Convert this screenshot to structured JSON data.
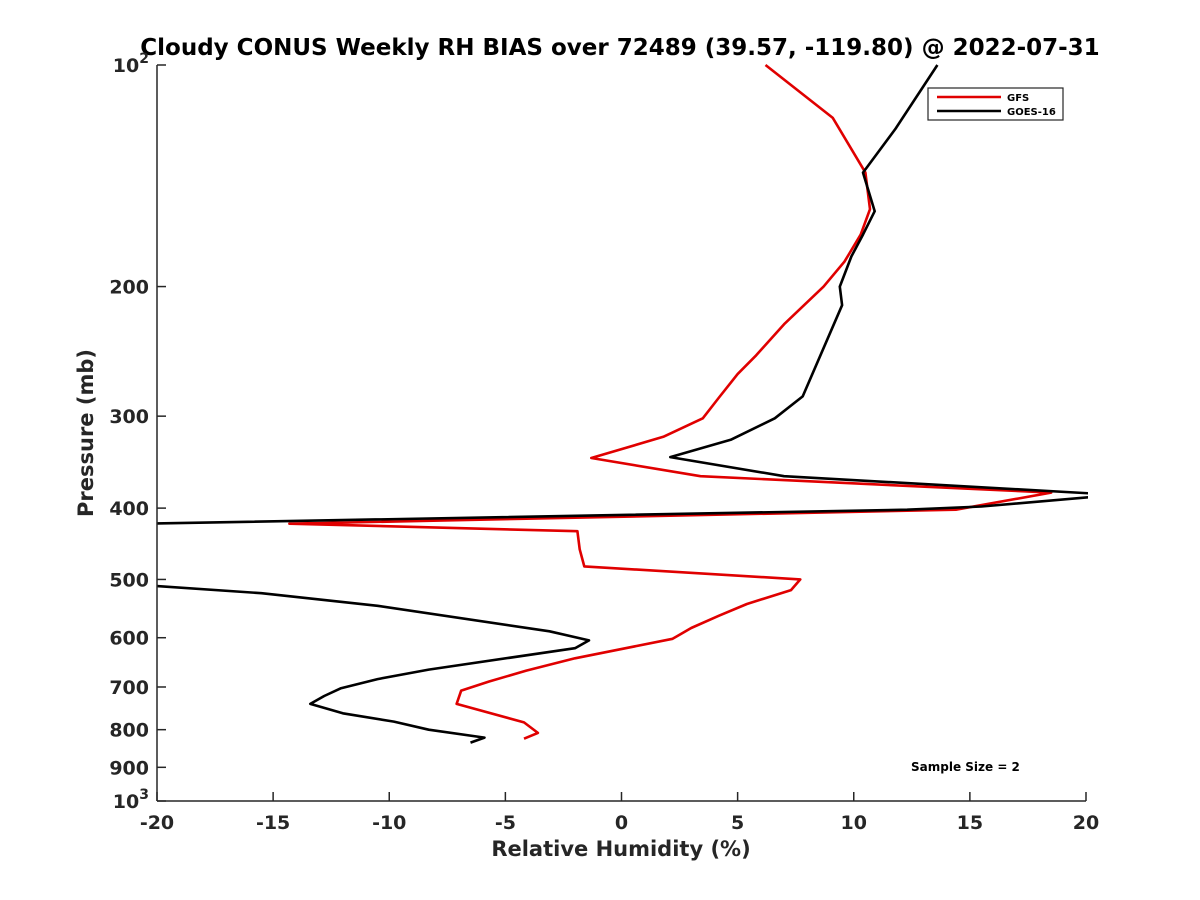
{
  "chart_data": {
    "type": "line",
    "title": "Cloudy CONUS Weekly RH BIAS over 72489 (39.57, -119.80) @ 2022-07-31",
    "xlabel": "Relative Humidity (%)",
    "ylabel": "Pressure (mb)",
    "xlim": [
      -20,
      20
    ],
    "ylim": [
      100,
      1000
    ],
    "y_scale": "log",
    "y_reversed": true,
    "grid": false,
    "legend_position": "top-right",
    "x_ticks": [
      {
        "value": -20,
        "label": "-20"
      },
      {
        "value": -15,
        "label": "-15"
      },
      {
        "value": -10,
        "label": "-10"
      },
      {
        "value": -5,
        "label": "-5"
      },
      {
        "value": 0,
        "label": "0"
      },
      {
        "value": 5,
        "label": "5"
      },
      {
        "value": 10,
        "label": "10"
      },
      {
        "value": 15,
        "label": "15"
      },
      {
        "value": 20,
        "label": "20"
      }
    ],
    "y_ticks": [
      {
        "value": 100,
        "base": "10",
        "exp": "2"
      },
      {
        "value": 200,
        "label": "200"
      },
      {
        "value": 300,
        "label": "300"
      },
      {
        "value": 400,
        "label": "400"
      },
      {
        "value": 500,
        "label": "500"
      },
      {
        "value": 600,
        "label": "600"
      },
      {
        "value": 700,
        "label": "700"
      },
      {
        "value": 800,
        "label": "800"
      },
      {
        "value": 900,
        "label": "900"
      },
      {
        "value": 1000,
        "base": "10",
        "exp": "3"
      }
    ],
    "series": [
      {
        "name": "GFS",
        "color": "#e00000",
        "points": [
          [
            6.2,
            100
          ],
          [
            9.1,
            118
          ],
          [
            10.5,
            140
          ],
          [
            10.7,
            157
          ],
          [
            10.3,
            170
          ],
          [
            9.6,
            185
          ],
          [
            8.7,
            200
          ],
          [
            7.0,
            225
          ],
          [
            5.8,
            248
          ],
          [
            5.0,
            263
          ],
          [
            4.2,
            283
          ],
          [
            3.5,
            302
          ],
          [
            1.8,
            320
          ],
          [
            -1.3,
            342
          ],
          [
            3.4,
            362
          ],
          [
            18.5,
            381
          ],
          [
            14.4,
            402
          ],
          [
            -14.3,
            420
          ],
          [
            -1.9,
            430
          ],
          [
            -1.8,
            455
          ],
          [
            -1.6,
            480
          ],
          [
            7.7,
            500
          ],
          [
            7.3,
            517
          ],
          [
            5.4,
            540
          ],
          [
            4.2,
            560
          ],
          [
            3.0,
            582
          ],
          [
            2.2,
            602
          ],
          [
            -2.0,
            640
          ],
          [
            -4.1,
            665
          ],
          [
            -5.7,
            688
          ],
          [
            -6.9,
            708
          ],
          [
            -7.1,
            738
          ],
          [
            -4.2,
            782
          ],
          [
            -3.6,
            808
          ],
          [
            -4.2,
            823
          ]
        ]
      },
      {
        "name": "GOES-16",
        "color": "#000000",
        "points": [
          [
            13.6,
            100
          ],
          [
            11.8,
            122
          ],
          [
            10.4,
            140
          ],
          [
            10.9,
            158
          ],
          [
            10.4,
            170
          ],
          [
            9.9,
            182
          ],
          [
            9.4,
            200
          ],
          [
            9.5,
            212
          ],
          [
            7.8,
            282
          ],
          [
            6.6,
            302
          ],
          [
            4.7,
            323
          ],
          [
            2.1,
            341
          ],
          [
            7.0,
            362
          ],
          [
            20.2,
            382
          ],
          [
            20.4,
            386
          ],
          [
            15.5,
            398
          ],
          [
            12.3,
            402
          ],
          [
            -20.5,
            420
          ],
          [
            -20.2,
            510
          ],
          [
            -15.5,
            522
          ],
          [
            -10.5,
            543
          ],
          [
            -3.1,
            588
          ],
          [
            -1.4,
            605
          ],
          [
            -2.0,
            620
          ],
          [
            -8.3,
            663
          ],
          [
            -10.5,
            683
          ],
          [
            -12.1,
            703
          ],
          [
            -12.8,
            720
          ],
          [
            -13.4,
            738
          ],
          [
            -12.0,
            760
          ],
          [
            -9.8,
            780
          ],
          [
            -8.3,
            800
          ],
          [
            -5.9,
            820
          ],
          [
            -6.5,
            833
          ]
        ]
      }
    ],
    "annotations": [
      {
        "text": "Sample Size = 2",
        "x": 14,
        "y": 900
      }
    ]
  }
}
